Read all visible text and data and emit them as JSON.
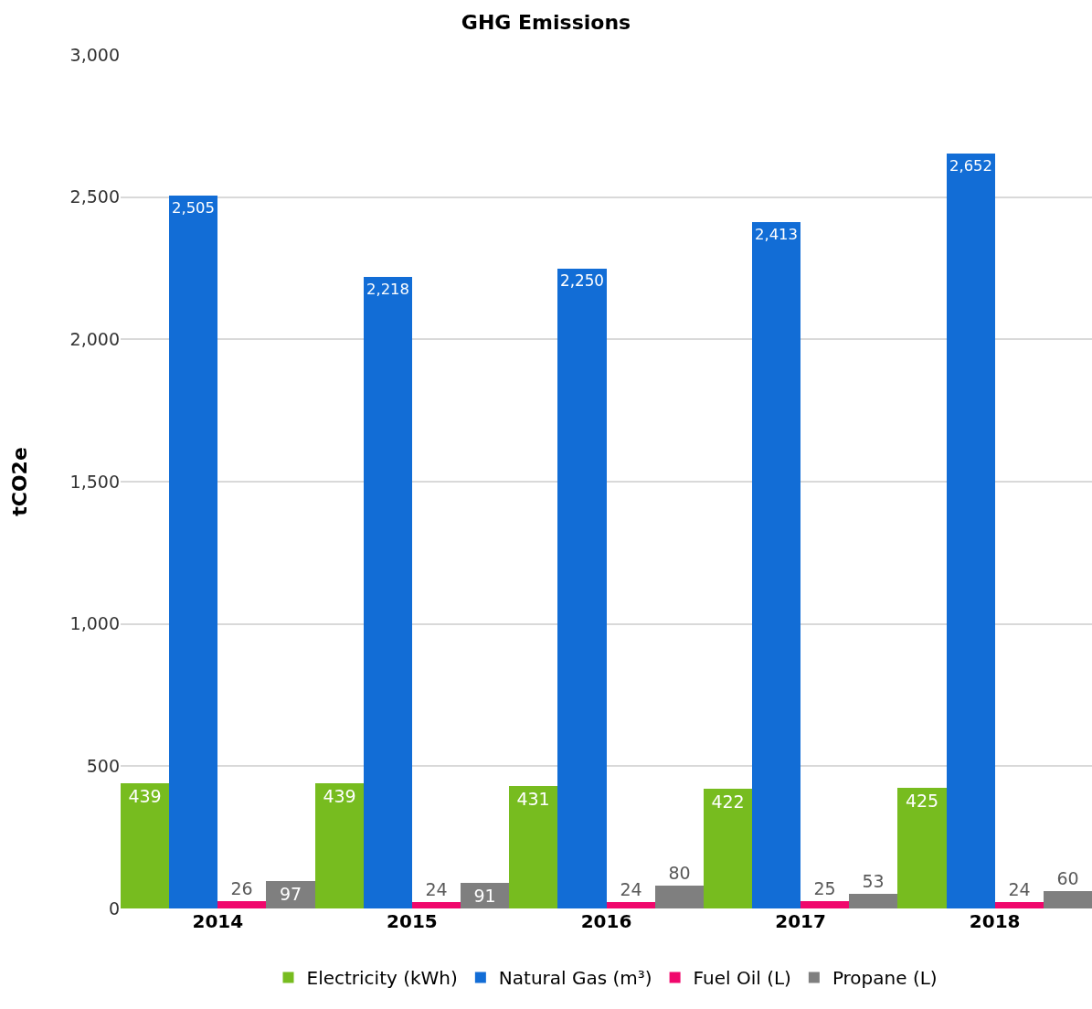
{
  "chart_data": {
    "type": "bar",
    "title": "GHG Emissions",
    "ylabel": "tCO2e",
    "categories": [
      "2014",
      "2015",
      "2016",
      "2017",
      "2018"
    ],
    "series": [
      {
        "name": "Electricity (kWh)",
        "color": "#77bc1f",
        "values": [
          439,
          439,
          431,
          422,
          425
        ],
        "value_labels": [
          "439",
          "439",
          "431",
          "422",
          "425"
        ]
      },
      {
        "name": "Natural Gas (m³)",
        "color": "#126dd6",
        "values": [
          2505,
          2218,
          2250,
          2413,
          2652
        ],
        "value_labels": [
          "2,505",
          "2,218",
          "2,250",
          "2,413",
          "2,652"
        ]
      },
      {
        "name": "Fuel Oil (L)",
        "color": "#f0076c",
        "values": [
          26,
          24,
          24,
          25,
          24
        ],
        "value_labels": [
          "26",
          "24",
          "24",
          "25",
          "24"
        ]
      },
      {
        "name": "Propane (L)",
        "color": "#7f7f7f",
        "values": [
          97,
          91,
          80,
          53,
          60
        ],
        "value_labels": [
          "97",
          "91",
          "80",
          "53",
          "60"
        ]
      }
    ],
    "ylim": [
      0,
      3000
    ],
    "yticks": [
      0,
      {
        "value": 500,
        "label": "500"
      },
      {
        "value": 1000,
        "label": "1,000"
      },
      {
        "value": 1500,
        "label": "1,500"
      },
      {
        "value": 2000,
        "label": "2,000"
      },
      {
        "value": 2500,
        "label": "2,500"
      },
      {
        "value": 3000,
        "label": "3,000"
      }
    ],
    "grid": "y",
    "legend": "bottom"
  }
}
